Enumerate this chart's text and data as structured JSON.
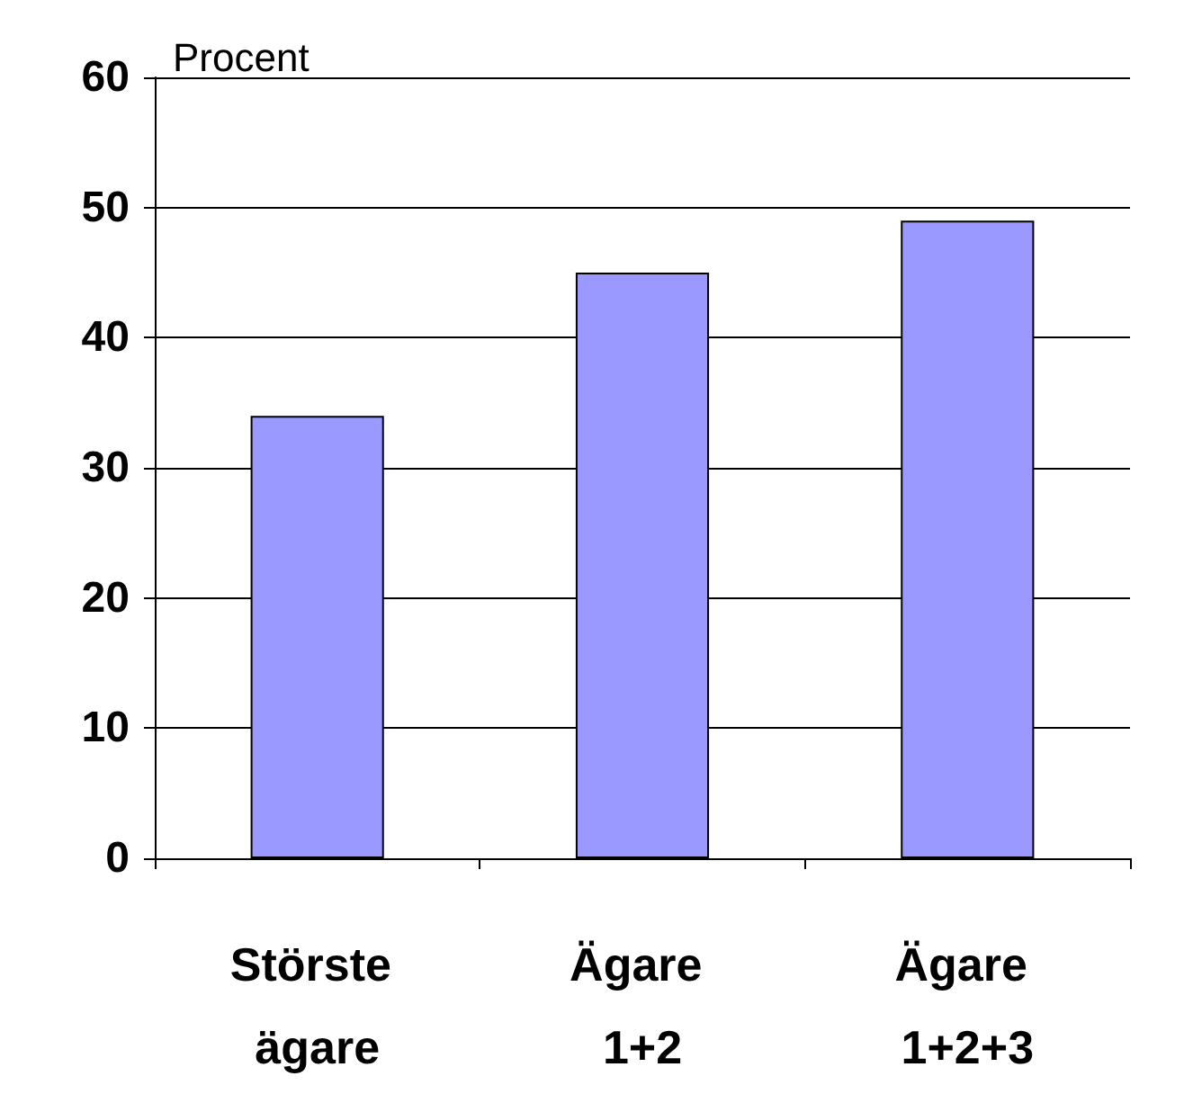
{
  "chart_data": {
    "type": "bar",
    "ylabel": "Procent",
    "categories": [
      "Störste ägare",
      "Ägare 1+2",
      "Ägare 1+2+3"
    ],
    "values": [
      34,
      45,
      49
    ],
    "color": "#9999ff",
    "ylim": [
      0,
      60
    ],
    "yticks": [
      0,
      10,
      20,
      30,
      40,
      50,
      60
    ],
    "grid": "y"
  }
}
